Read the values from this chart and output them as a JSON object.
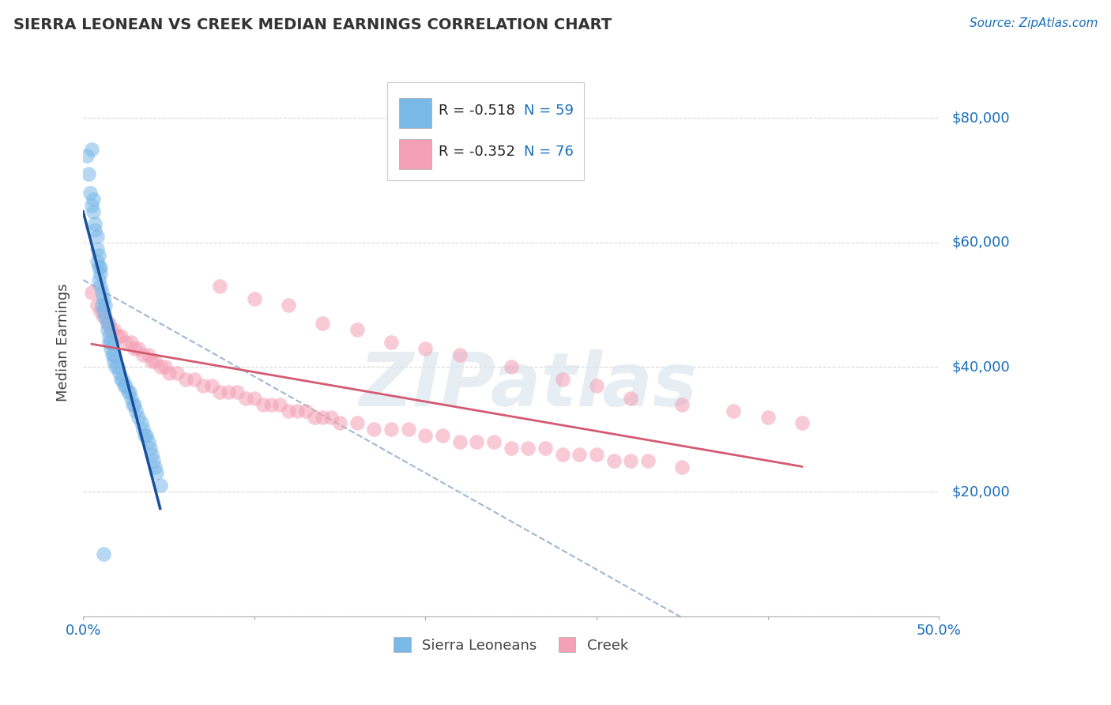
{
  "title": "SIERRA LEONEAN VS CREEK MEDIAN EARNINGS CORRELATION CHART",
  "source": "Source: ZipAtlas.com",
  "ylabel": "Median Earnings",
  "yticks": [
    0,
    20000,
    40000,
    60000,
    80000
  ],
  "ytick_labels": [
    "",
    "$20,000",
    "$40,000",
    "$60,000",
    "$80,000"
  ],
  "xlim": [
    0.0,
    0.5
  ],
  "ylim": [
    0,
    88000
  ],
  "legend_label1": "Sierra Leoneans",
  "legend_label2": "Creek",
  "legend_r1": "R = -0.518",
  "legend_n1": "N = 59",
  "legend_r2": "R = -0.352",
  "legend_n2": "N = 76",
  "color_blue": "#7ab8e8",
  "color_pink": "#f4a0b5",
  "color_blue_line": "#1a4f9c",
  "color_pink_line": "#d45a72",
  "color_dashed": "#a0b8d0",
  "watermark_text": "ZIPatlas",
  "background_color": "#ffffff",
  "grid_color": "#d8d8d8",
  "sierra_x": [
    0.002,
    0.003,
    0.004,
    0.005,
    0.005,
    0.006,
    0.006,
    0.007,
    0.007,
    0.008,
    0.008,
    0.008,
    0.009,
    0.009,
    0.009,
    0.01,
    0.01,
    0.01,
    0.011,
    0.011,
    0.012,
    0.012,
    0.013,
    0.013,
    0.014,
    0.014,
    0.015,
    0.015,
    0.016,
    0.016,
    0.017,
    0.018,
    0.018,
    0.019,
    0.02,
    0.021,
    0.022,
    0.023,
    0.024,
    0.025,
    0.026,
    0.027,
    0.028,
    0.029,
    0.03,
    0.031,
    0.032,
    0.034,
    0.035,
    0.036,
    0.037,
    0.038,
    0.039,
    0.04,
    0.041,
    0.042,
    0.043,
    0.045,
    0.012
  ],
  "sierra_y": [
    74000,
    71000,
    68000,
    75000,
    66000,
    65000,
    67000,
    63000,
    62000,
    61000,
    59000,
    57000,
    58000,
    56000,
    54000,
    56000,
    55000,
    53000,
    52000,
    50000,
    51000,
    49000,
    50000,
    48000,
    47000,
    46000,
    45000,
    44000,
    44000,
    43000,
    42000,
    42000,
    41000,
    40000,
    40000,
    39000,
    38000,
    38000,
    37000,
    37000,
    36000,
    36000,
    35000,
    34000,
    34000,
    33000,
    32000,
    31000,
    30000,
    29000,
    29000,
    28000,
    27000,
    26000,
    25000,
    24000,
    23000,
    21000,
    10000
  ],
  "creek_x": [
    0.005,
    0.008,
    0.01,
    0.012,
    0.014,
    0.015,
    0.016,
    0.018,
    0.02,
    0.022,
    0.025,
    0.028,
    0.03,
    0.032,
    0.035,
    0.038,
    0.04,
    0.042,
    0.045,
    0.048,
    0.05,
    0.055,
    0.06,
    0.065,
    0.07,
    0.075,
    0.08,
    0.085,
    0.09,
    0.095,
    0.1,
    0.105,
    0.11,
    0.115,
    0.12,
    0.125,
    0.13,
    0.135,
    0.14,
    0.145,
    0.15,
    0.16,
    0.17,
    0.18,
    0.19,
    0.2,
    0.21,
    0.22,
    0.23,
    0.24,
    0.25,
    0.26,
    0.27,
    0.28,
    0.29,
    0.3,
    0.31,
    0.32,
    0.33,
    0.35,
    0.08,
    0.1,
    0.12,
    0.14,
    0.16,
    0.18,
    0.2,
    0.22,
    0.25,
    0.28,
    0.3,
    0.32,
    0.35,
    0.38,
    0.4,
    0.42
  ],
  "creek_y": [
    52000,
    50000,
    49000,
    48000,
    47000,
    47000,
    46000,
    46000,
    45000,
    45000,
    44000,
    44000,
    43000,
    43000,
    42000,
    42000,
    41000,
    41000,
    40000,
    40000,
    39000,
    39000,
    38000,
    38000,
    37000,
    37000,
    36000,
    36000,
    36000,
    35000,
    35000,
    34000,
    34000,
    34000,
    33000,
    33000,
    33000,
    32000,
    32000,
    32000,
    31000,
    31000,
    30000,
    30000,
    30000,
    29000,
    29000,
    28000,
    28000,
    28000,
    27000,
    27000,
    27000,
    26000,
    26000,
    26000,
    25000,
    25000,
    25000,
    24000,
    53000,
    51000,
    50000,
    47000,
    46000,
    44000,
    43000,
    42000,
    40000,
    38000,
    37000,
    35000,
    34000,
    33000,
    32000,
    31000
  ]
}
